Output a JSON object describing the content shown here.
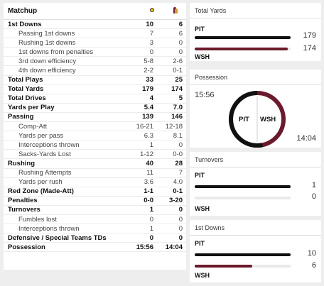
{
  "matchup": {
    "title": "Matchup",
    "team1_logo": "steelers-logo",
    "team2_logo": "commanders-logo",
    "rows": [
      {
        "label": "1st Downs",
        "v1": "10",
        "v2": "6",
        "main": true
      },
      {
        "label": "Passing 1st downs",
        "v1": "7",
        "v2": "6",
        "main": false
      },
      {
        "label": "Rushing 1st downs",
        "v1": "3",
        "v2": "0",
        "main": false
      },
      {
        "label": "1st downs from penalties",
        "v1": "0",
        "v2": "0",
        "main": false
      },
      {
        "label": "3rd down efficiency",
        "v1": "5-8",
        "v2": "2-6",
        "main": false
      },
      {
        "label": "4th down efficiency",
        "v1": "2-2",
        "v2": "0-1",
        "main": false
      },
      {
        "label": "Total Plays",
        "v1": "33",
        "v2": "25",
        "main": true
      },
      {
        "label": "Total Yards",
        "v1": "179",
        "v2": "174",
        "main": true
      },
      {
        "label": "Total Drives",
        "v1": "4",
        "v2": "5",
        "main": true
      },
      {
        "label": "Yards per Play",
        "v1": "5.4",
        "v2": "7.0",
        "main": true
      },
      {
        "label": "Passing",
        "v1": "139",
        "v2": "146",
        "main": true
      },
      {
        "label": "Comp-Att",
        "v1": "16-21",
        "v2": "12-18",
        "main": false
      },
      {
        "label": "Yards per pass",
        "v1": "6.3",
        "v2": "8.1",
        "main": false
      },
      {
        "label": "Interceptions thrown",
        "v1": "1",
        "v2": "0",
        "main": false
      },
      {
        "label": "Sacks-Yards Lost",
        "v1": "1-12",
        "v2": "0-0",
        "main": false
      },
      {
        "label": "Rushing",
        "v1": "40",
        "v2": "28",
        "main": true
      },
      {
        "label": "Rushing Attempts",
        "v1": "11",
        "v2": "7",
        "main": false
      },
      {
        "label": "Yards per rush",
        "v1": "3.6",
        "v2": "4.0",
        "main": false
      },
      {
        "label": "Red Zone (Made-Att)",
        "v1": "1-1",
        "v2": "0-1",
        "main": true
      },
      {
        "label": "Penalties",
        "v1": "0-0",
        "v2": "3-20",
        "main": true
      },
      {
        "label": "Turnovers",
        "v1": "1",
        "v2": "0",
        "main": true
      },
      {
        "label": "Fumbles lost",
        "v1": "0",
        "v2": "0",
        "main": false
      },
      {
        "label": "Interceptions thrown",
        "v1": "1",
        "v2": "0",
        "main": false
      },
      {
        "label": "Defensive / Special Teams TDs",
        "v1": "0",
        "v2": "0",
        "main": true
      },
      {
        "label": "Possession",
        "v1": "15:56",
        "v2": "14:04",
        "main": true
      }
    ]
  },
  "total_yards": {
    "title": "Total Yards",
    "team1": "PIT",
    "team1_value": "179",
    "team1_fraction": 1.0,
    "team2": "WSH",
    "team2_value": "174",
    "team2_fraction": 0.972
  },
  "possession": {
    "title": "Possession",
    "team1": "PIT",
    "team1_time": "15:56",
    "team1_fraction": 0.531,
    "team2": "WSH",
    "team2_time": "14:04"
  },
  "turnovers": {
    "title": "Turnovers",
    "team1": "PIT",
    "team1_value": "1",
    "team1_fraction": 1.0,
    "team2": "WSH",
    "team2_value": "0",
    "team2_fraction": 0.0
  },
  "first_downs": {
    "title": "1st Downs",
    "team1": "PIT",
    "team1_value": "10",
    "team1_fraction": 1.0,
    "team2": "WSH",
    "team2_value": "6",
    "team2_fraction": 0.6
  },
  "colors": {
    "pit": "#111111",
    "wsh": "#6b1a2b",
    "track": "#e9e9e9"
  }
}
